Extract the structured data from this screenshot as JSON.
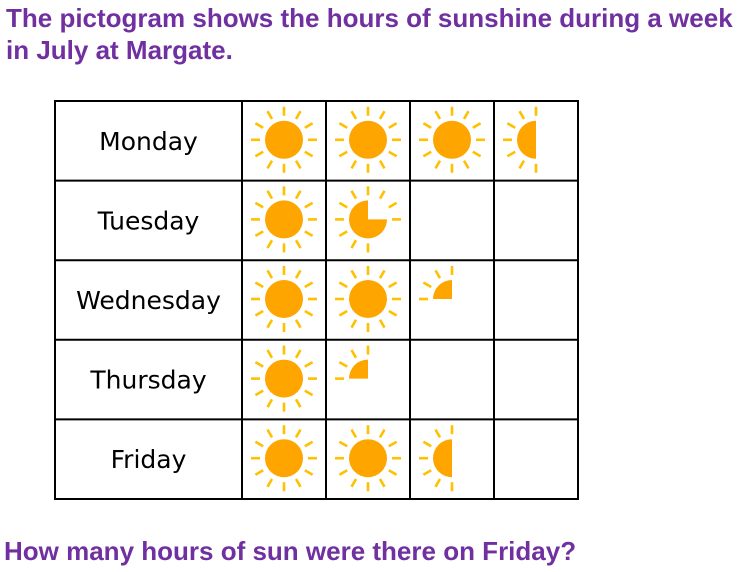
{
  "heading": "The pictogram shows the hours of sunshine during a week in July at Margate.",
  "question": "How many hours of sun were there on Friday?",
  "colors": {
    "sun": "#FFA500",
    "rays": "#FFC000",
    "grid": "#000000",
    "text": "#7030A0"
  },
  "chart_data": {
    "type": "pictogram",
    "icon": "sun-icon",
    "categories": [
      "Monday",
      "Tuesday",
      "Wednesday",
      "Thursday",
      "Friday"
    ],
    "symbols": [
      3.5,
      1.75,
      2.25,
      1.25,
      2.5
    ],
    "columns": 4
  }
}
